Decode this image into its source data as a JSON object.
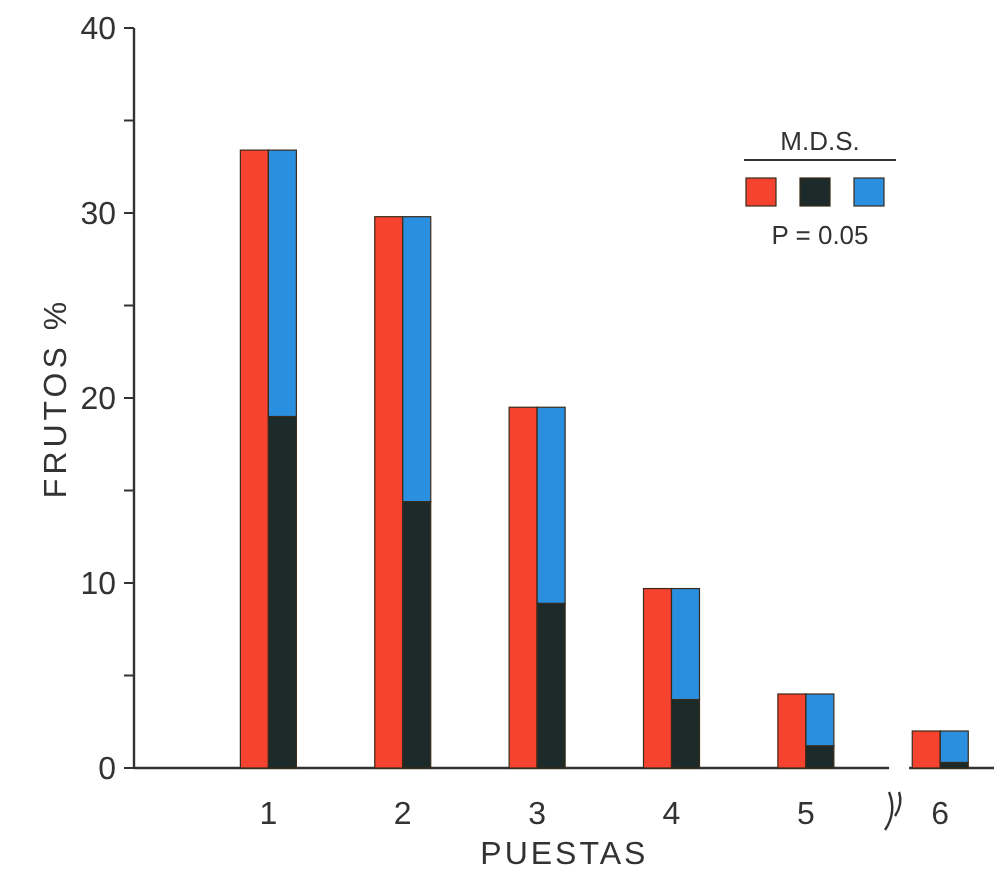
{
  "chart_data": {
    "type": "bar",
    "xlabel": "PUESTAS",
    "ylabel": "FRUTOS %",
    "legend_title": "M.D.S.",
    "annotations": [
      "P = 0.05"
    ],
    "categories": [
      "1",
      "2",
      "3",
      "4",
      "5",
      "6"
    ],
    "ylim": [
      0,
      40
    ],
    "yticks": [
      0,
      {
        "value": 5,
        "label": null
      },
      10,
      {
        "value": 15,
        "label": null
      },
      20,
      {
        "value": 25,
        "label": null
      },
      30,
      {
        "value": 35,
        "label": null
      },
      40
    ],
    "series": [
      {
        "color": "#f5432f",
        "values": [
          33.4,
          29.8,
          19.5,
          9.7,
          4.0,
          2.0
        ]
      },
      {
        "color": "#1c2a2a",
        "base": [
          0,
          0,
          0,
          0,
          0,
          0
        ],
        "values": [
          19.0,
          14.4,
          8.9,
          3.7,
          1.2,
          0.3
        ]
      },
      {
        "color": "#2b8fe0",
        "base": [
          19.0,
          14.4,
          8.9,
          3.7,
          1.2,
          0.3
        ],
        "values": [
          14.4,
          15.4,
          10.6,
          6.0,
          2.8,
          1.7
        ]
      }
    ]
  }
}
